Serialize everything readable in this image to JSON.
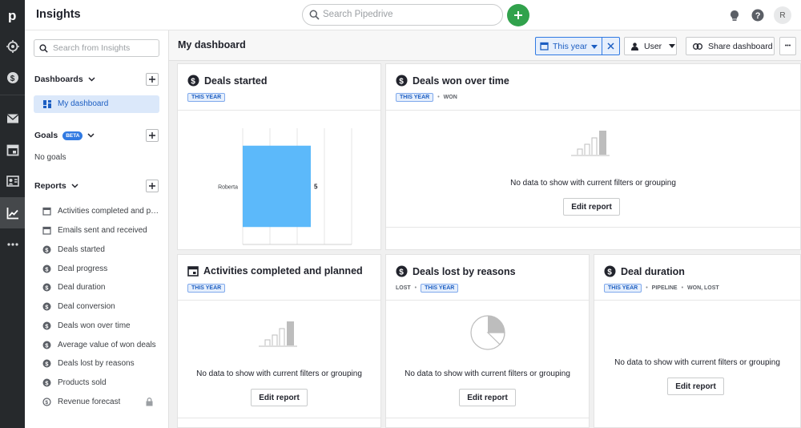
{
  "app": {
    "title": "Insights",
    "logo_letter": "p"
  },
  "topbar": {
    "search_placeholder": "Search Pipedrive",
    "avatar_initial": "R"
  },
  "sidebar": {
    "search_placeholder": "Search from Insights",
    "dashboards_label": "Dashboards",
    "dashboard_item": "My dashboard",
    "goals_label": "Goals",
    "goals_badge": "BETA",
    "no_goals": "No goals",
    "reports_label": "Reports",
    "reports": [
      {
        "label": "Activities completed and planned",
        "icon": "calendar-icon"
      },
      {
        "label": "Emails sent and received",
        "icon": "calendar-icon"
      },
      {
        "label": "Deals started",
        "icon": "dollar-icon"
      },
      {
        "label": "Deal progress",
        "icon": "dollar-icon"
      },
      {
        "label": "Deal duration",
        "icon": "dollar-icon"
      },
      {
        "label": "Deal conversion",
        "icon": "dollar-icon"
      },
      {
        "label": "Deals won over time",
        "icon": "dollar-icon"
      },
      {
        "label": "Average value of won deals",
        "icon": "dollar-icon"
      },
      {
        "label": "Deals lost by reasons",
        "icon": "dollar-icon"
      },
      {
        "label": "Products sold",
        "icon": "dollar-icon"
      },
      {
        "label": "Revenue forecast",
        "icon": "forecast-icon"
      }
    ]
  },
  "dashboard": {
    "title": "My dashboard",
    "period_filter": "This year",
    "user_filter": "User",
    "share_label": "Share dashboard",
    "more_label": "•••"
  },
  "cards": {
    "deals_started": {
      "title": "Deals started",
      "tags": [
        "THIS YEAR"
      ],
      "chart_data": {
        "type": "bar",
        "orientation": "horizontal",
        "categories": [
          "Roberta"
        ],
        "values": [
          5
        ],
        "data_labels": [
          "5"
        ],
        "xticks": [
          "0",
          "2",
          "4",
          "6",
          "8"
        ],
        "xlim": [
          0,
          8
        ],
        "color": "#5cb9fa"
      }
    },
    "deals_won": {
      "title": "Deals won over time",
      "tag_this_year": "THIS YEAR",
      "tag_won": "WON",
      "nodata": "No data to show with current filters or grouping",
      "edit_label": "Edit report"
    },
    "activities": {
      "title": "Activities completed and planned",
      "tag_this_year": "THIS YEAR",
      "nodata": "No data to show with current filters or grouping",
      "edit_label": "Edit report"
    },
    "deals_lost": {
      "title": "Deals lost by reasons",
      "tag_lost": "LOST",
      "tag_this_year": "THIS YEAR",
      "nodata": "No data to show with current filters or grouping",
      "edit_label": "Edit report"
    },
    "deal_duration": {
      "title": "Deal duration",
      "tag_this_year": "THIS YEAR",
      "tag_pipeline": "PIPELINE",
      "tag_status": "WON, LOST",
      "nodata": "No data to show with current filters or grouping",
      "edit_label": "Edit report"
    }
  },
  "colors": {
    "accent": "#317ae2",
    "add_button": "#31a24c",
    "rail": "#26292c",
    "bar": "#5cb9fa"
  }
}
